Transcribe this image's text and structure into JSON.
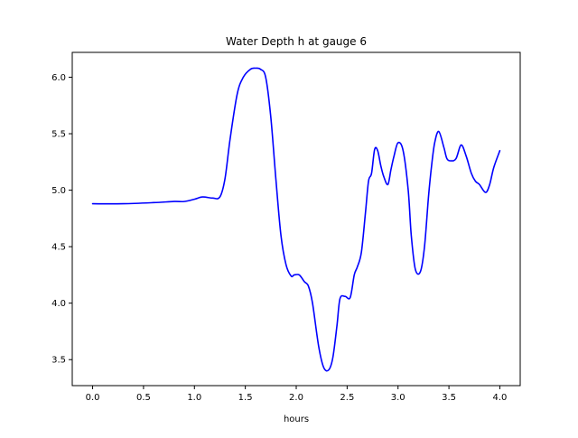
{
  "chart_data": {
    "type": "line",
    "title": "Water Depth h at gauge 6",
    "xlabel": "hours",
    "ylabel": "",
    "xlim": [
      -0.2,
      4.2
    ],
    "ylim": [
      3.27,
      6.22
    ],
    "x_ticks": [
      0.0,
      0.5,
      1.0,
      1.5,
      2.0,
      2.5,
      3.0,
      3.5,
      4.0
    ],
    "x_tick_labels": [
      "0.0",
      "0.5",
      "1.0",
      "1.5",
      "2.0",
      "2.5",
      "3.0",
      "3.5",
      "4.0"
    ],
    "y_ticks": [
      3.5,
      4.0,
      4.5,
      5.0,
      5.5,
      6.0
    ],
    "y_tick_labels": [
      "3.5",
      "4.0",
      "4.5",
      "5.0",
      "5.5",
      "6.0"
    ],
    "grid": false,
    "legend": "none",
    "series": [
      {
        "color": "#0000ff",
        "x": [
          0.0,
          0.3,
          0.6,
          0.8,
          0.9,
          1.0,
          1.08,
          1.18,
          1.25,
          1.3,
          1.35,
          1.42,
          1.48,
          1.55,
          1.6,
          1.65,
          1.7,
          1.75,
          1.8,
          1.85,
          1.9,
          1.95,
          1.98,
          2.03,
          2.08,
          2.12,
          2.16,
          2.22,
          2.27,
          2.32,
          2.36,
          2.4,
          2.43,
          2.48,
          2.53,
          2.57,
          2.6,
          2.64,
          2.68,
          2.71,
          2.74,
          2.77,
          2.8,
          2.83,
          2.86,
          2.9,
          2.93,
          2.96,
          3.0,
          3.05,
          3.1,
          3.13,
          3.17,
          3.22,
          3.26,
          3.3,
          3.33,
          3.36,
          3.4,
          3.45,
          3.48,
          3.52,
          3.57,
          3.62,
          3.67,
          3.72,
          3.76,
          3.8,
          3.86,
          3.9,
          3.94,
          4.0
        ],
        "y": [
          4.88,
          4.88,
          4.89,
          4.9,
          4.9,
          4.92,
          4.94,
          4.93,
          4.94,
          5.1,
          5.45,
          5.85,
          6.0,
          6.07,
          6.08,
          6.07,
          6.0,
          5.65,
          5.1,
          4.6,
          4.34,
          4.24,
          4.25,
          4.25,
          4.19,
          4.15,
          4.0,
          3.62,
          3.43,
          3.41,
          3.52,
          3.8,
          4.04,
          4.06,
          4.05,
          4.25,
          4.32,
          4.45,
          4.8,
          5.08,
          5.15,
          5.36,
          5.35,
          5.22,
          5.12,
          5.05,
          5.18,
          5.3,
          5.42,
          5.35,
          5.0,
          4.6,
          4.3,
          4.28,
          4.5,
          4.95,
          5.22,
          5.42,
          5.52,
          5.38,
          5.28,
          5.26,
          5.28,
          5.4,
          5.3,
          5.15,
          5.08,
          5.05,
          4.98,
          5.05,
          5.2,
          5.35
        ]
      }
    ]
  }
}
